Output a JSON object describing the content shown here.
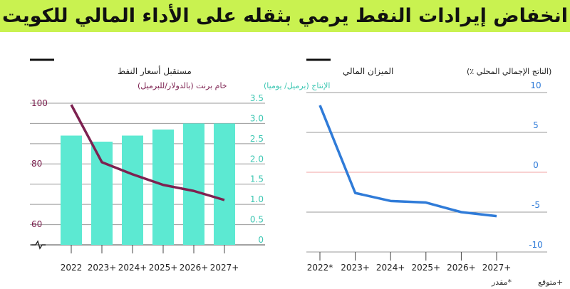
{
  "headline": "انخفاض إيرادات النفط يرمي بثقله على الأداء المالي للكويت",
  "chart_data": [
    {
      "type": "bar+line",
      "title": "مستقبل أسعار النفط",
      "categories": [
        "2022",
        "2023+",
        "2024+",
        "2025+",
        "2026+",
        "2027+"
      ],
      "series": [
        {
          "name": "الإنتاج (برميل/ يوميا)",
          "axis": "right",
          "type": "bar",
          "values": [
            2.7,
            2.55,
            2.7,
            2.85,
            3.0,
            3.0
          ],
          "color": "#5ce9d2"
        },
        {
          "name": "خام برنت (بالدولار/للبرميل)",
          "axis": "left",
          "type": "line",
          "values": [
            99.5,
            80.5,
            76.5,
            73.0,
            71.0,
            68.0
          ],
          "color": "#7d2150"
        }
      ],
      "left_axis": {
        "ticks": [
          "100",
          "80",
          "60"
        ],
        "color": "#7d2150"
      },
      "right_axis": {
        "ticks": [
          "3.5",
          "3.0",
          "2.5",
          "2.0",
          "1.5",
          "1.0",
          "0.5",
          "0"
        ],
        "ylim": [
          0,
          3.5
        ]
      },
      "axis_break": "-^-"
    },
    {
      "type": "line",
      "title": "الميزان المالي",
      "ylabel": "(الناتج الإجمالي المحلي ٪)",
      "categories": [
        "2022*",
        "2023+",
        "2024+",
        "2025+",
        "2026+",
        "2027+"
      ],
      "series": [
        {
          "name": "الميزان المالي",
          "values": [
            8.4,
            -2.6,
            -3.6,
            -3.8,
            -5.0,
            -5.5
          ],
          "color": "#2f7bd8"
        }
      ],
      "y_ticks": [
        "10",
        "5",
        "0",
        "-5",
        "-10"
      ],
      "ylim": [
        -10,
        10
      ],
      "zero_line_color": "#f1a3a3"
    }
  ],
  "legend_note": {
    "forecast": "+متوقع",
    "estimate": "*مقدر"
  }
}
